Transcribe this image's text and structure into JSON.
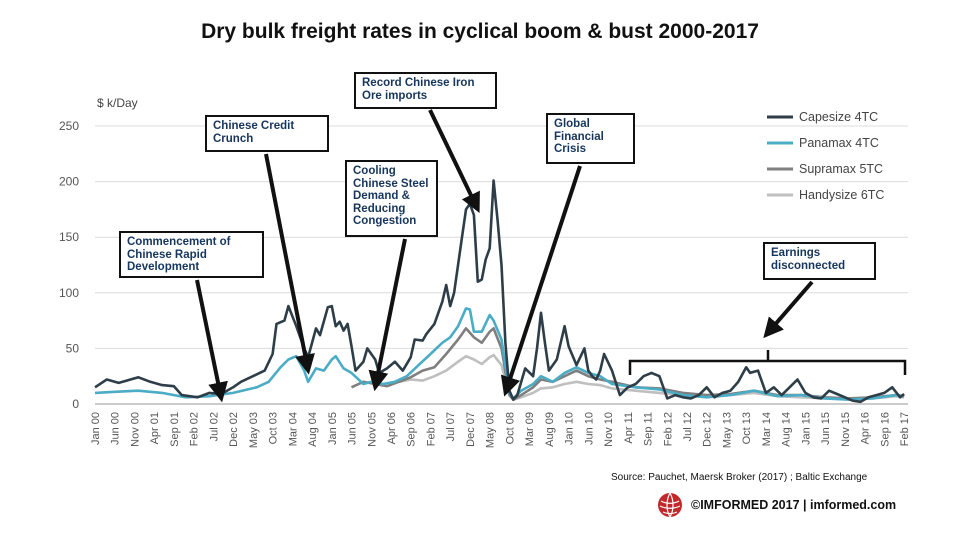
{
  "chart_data": {
    "type": "line",
    "title": "Dry bulk freight rates in cyclical boom & bust 2000-2017",
    "ylabel": "$ k/Day",
    "ylim": [
      0,
      250
    ],
    "yticks": [
      0,
      50,
      100,
      150,
      200,
      250
    ],
    "xlim": [
      "2000-01",
      "2017-03"
    ],
    "xticks": [
      "Jan 00",
      "Jun 00",
      "Nov 00",
      "Apr 01",
      "Sep 01",
      "Feb 02",
      "Jul 02",
      "Dec 02",
      "May 03",
      "Oct 03",
      "Mar 04",
      "Aug 04",
      "Jan 05",
      "Jun 05",
      "Nov 05",
      "Apr 06",
      "Sep 06",
      "Feb 07",
      "Jul 07",
      "Dec 07",
      "May 08",
      "Oct 08",
      "Mar 09",
      "Aug 09",
      "Jan 10",
      "Jun 10",
      "Nov 10",
      "Apr 11",
      "Sep 11",
      "Feb 12",
      "Jul 12",
      "Dec 12",
      "May 13",
      "Oct 13",
      "Mar 14",
      "Aug 14",
      "Jan 15",
      "Jun 15",
      "Nov 15",
      "Apr 16",
      "Sep 16",
      "Feb 17"
    ],
    "grid": "horizontal",
    "legend_position": "top-right",
    "series": [
      {
        "name": "Capesize 4TC",
        "color": "#2e3e48",
        "points": [
          [
            "2000-01",
            15
          ],
          [
            "2000-04",
            22
          ],
          [
            "2000-07",
            19
          ],
          [
            "2000-10",
            22
          ],
          [
            "2000-12",
            24
          ],
          [
            "2001-03",
            20
          ],
          [
            "2001-06",
            17
          ],
          [
            "2001-09",
            16
          ],
          [
            "2001-11",
            8
          ],
          [
            "2002-03",
            6
          ],
          [
            "2002-06",
            10
          ],
          [
            "2002-09",
            9
          ],
          [
            "2002-12",
            15
          ],
          [
            "2003-02",
            20
          ],
          [
            "2003-05",
            25
          ],
          [
            "2003-08",
            30
          ],
          [
            "2003-10",
            45
          ],
          [
            "2003-11",
            72
          ],
          [
            "2004-01",
            75
          ],
          [
            "2004-02",
            88
          ],
          [
            "2004-04",
            70
          ],
          [
            "2004-06",
            50
          ],
          [
            "2004-07",
            42
          ],
          [
            "2004-09",
            68
          ],
          [
            "2004-10",
            62
          ],
          [
            "2004-12",
            87
          ],
          [
            "2005-01",
            88
          ],
          [
            "2005-02",
            70
          ],
          [
            "2005-03",
            74
          ],
          [
            "2005-04",
            66
          ],
          [
            "2005-05",
            72
          ],
          [
            "2005-06",
            52
          ],
          [
            "2005-07",
            30
          ],
          [
            "2005-09",
            38
          ],
          [
            "2005-10",
            50
          ],
          [
            "2005-12",
            40
          ],
          [
            "2006-01",
            28
          ],
          [
            "2006-03",
            32
          ],
          [
            "2006-05",
            38
          ],
          [
            "2006-07",
            30
          ],
          [
            "2006-09",
            42
          ],
          [
            "2006-10",
            58
          ],
          [
            "2006-12",
            57
          ],
          [
            "2007-01",
            63
          ],
          [
            "2007-03",
            72
          ],
          [
            "2007-05",
            92
          ],
          [
            "2007-06",
            107
          ],
          [
            "2007-07",
            88
          ],
          [
            "2007-08",
            100
          ],
          [
            "2007-10",
            150
          ],
          [
            "2007-11",
            175
          ],
          [
            "2007-12",
            180
          ],
          [
            "2008-01",
            170
          ],
          [
            "2008-02",
            110
          ],
          [
            "2008-03",
            112
          ],
          [
            "2008-04",
            130
          ],
          [
            "2008-05",
            140
          ],
          [
            "2008-06",
            201
          ],
          [
            "2008-07",
            165
          ],
          [
            "2008-08",
            125
          ],
          [
            "2008-09",
            55
          ],
          [
            "2008-10",
            12
          ],
          [
            "2008-11",
            4
          ],
          [
            "2008-12",
            8
          ],
          [
            "2009-02",
            32
          ],
          [
            "2009-04",
            25
          ],
          [
            "2009-05",
            50
          ],
          [
            "2009-06",
            82
          ],
          [
            "2009-07",
            55
          ],
          [
            "2009-08",
            30
          ],
          [
            "2009-10",
            40
          ],
          [
            "2009-12",
            70
          ],
          [
            "2010-01",
            52
          ],
          [
            "2010-03",
            35
          ],
          [
            "2010-05",
            50
          ],
          [
            "2010-06",
            30
          ],
          [
            "2010-07",
            25
          ],
          [
            "2010-08",
            22
          ],
          [
            "2010-09",
            30
          ],
          [
            "2010-10",
            45
          ],
          [
            "2010-12",
            30
          ],
          [
            "2011-02",
            8
          ],
          [
            "2011-04",
            15
          ],
          [
            "2011-06",
            18
          ],
          [
            "2011-08",
            25
          ],
          [
            "2011-10",
            28
          ],
          [
            "2011-12",
            25
          ],
          [
            "2012-02",
            5
          ],
          [
            "2012-04",
            8
          ],
          [
            "2012-06",
            6
          ],
          [
            "2012-08",
            5
          ],
          [
            "2012-10",
            8
          ],
          [
            "2012-12",
            15
          ],
          [
            "2013-02",
            6
          ],
          [
            "2013-04",
            10
          ],
          [
            "2013-06",
            12
          ],
          [
            "2013-08",
            20
          ],
          [
            "2013-10",
            33
          ],
          [
            "2013-11",
            28
          ],
          [
            "2014-01",
            30
          ],
          [
            "2014-03",
            10
          ],
          [
            "2014-05",
            15
          ],
          [
            "2014-07",
            8
          ],
          [
            "2014-09",
            15
          ],
          [
            "2014-11",
            22
          ],
          [
            "2015-01",
            10
          ],
          [
            "2015-03",
            6
          ],
          [
            "2015-05",
            5
          ],
          [
            "2015-07",
            12
          ],
          [
            "2015-09",
            9
          ],
          [
            "2015-11",
            6
          ],
          [
            "2016-01",
            3
          ],
          [
            "2016-03",
            2
          ],
          [
            "2016-05",
            6
          ],
          [
            "2016-07",
            8
          ],
          [
            "2016-09",
            10
          ],
          [
            "2016-11",
            15
          ],
          [
            "2017-01",
            6
          ],
          [
            "2017-02",
            9
          ]
        ]
      },
      {
        "name": "Panamax 4TC",
        "color": "#4bacc6",
        "points": [
          [
            "2000-01",
            10
          ],
          [
            "2000-06",
            11
          ],
          [
            "2000-12",
            12
          ],
          [
            "2001-06",
            10
          ],
          [
            "2001-12",
            6
          ],
          [
            "2002-06",
            7
          ],
          [
            "2002-12",
            10
          ],
          [
            "2003-06",
            15
          ],
          [
            "2003-09",
            20
          ],
          [
            "2003-12",
            33
          ],
          [
            "2004-02",
            40
          ],
          [
            "2004-04",
            43
          ],
          [
            "2004-06",
            30
          ],
          [
            "2004-07",
            20
          ],
          [
            "2004-09",
            32
          ],
          [
            "2004-11",
            30
          ],
          [
            "2005-01",
            40
          ],
          [
            "2005-02",
            43
          ],
          [
            "2005-04",
            32
          ],
          [
            "2005-06",
            28
          ],
          [
            "2005-09",
            18
          ],
          [
            "2005-11",
            20
          ],
          [
            "2006-02",
            18
          ],
          [
            "2006-05",
            20
          ],
          [
            "2006-08",
            25
          ],
          [
            "2006-11",
            35
          ],
          [
            "2007-02",
            45
          ],
          [
            "2007-05",
            55
          ],
          [
            "2007-07",
            60
          ],
          [
            "2007-09",
            70
          ],
          [
            "2007-11",
            86
          ],
          [
            "2007-12",
            85
          ],
          [
            "2008-01",
            65
          ],
          [
            "2008-03",
            65
          ],
          [
            "2008-05",
            80
          ],
          [
            "2008-06",
            75
          ],
          [
            "2008-08",
            58
          ],
          [
            "2008-10",
            10
          ],
          [
            "2008-11",
            5
          ],
          [
            "2009-01",
            12
          ],
          [
            "2009-04",
            18
          ],
          [
            "2009-06",
            25
          ],
          [
            "2009-09",
            20
          ],
          [
            "2009-12",
            28
          ],
          [
            "2010-03",
            33
          ],
          [
            "2010-06",
            28
          ],
          [
            "2010-09",
            25
          ],
          [
            "2010-12",
            18
          ],
          [
            "2011-06",
            15
          ],
          [
            "2011-12",
            13
          ],
          [
            "2012-06",
            8
          ],
          [
            "2012-12",
            6
          ],
          [
            "2013-06",
            8
          ],
          [
            "2013-12",
            12
          ],
          [
            "2014-06",
            7
          ],
          [
            "2014-12",
            8
          ],
          [
            "2015-06",
            5
          ],
          [
            "2015-12",
            4
          ],
          [
            "2016-06",
            5
          ],
          [
            "2016-12",
            8
          ],
          [
            "2017-02",
            7
          ]
        ]
      },
      {
        "name": "Supramax 5TC",
        "color": "#7f7f7f",
        "points": [
          [
            "2005-06",
            15
          ],
          [
            "2005-09",
            20
          ],
          [
            "2005-12",
            18
          ],
          [
            "2006-03",
            16
          ],
          [
            "2006-06",
            20
          ],
          [
            "2006-09",
            24
          ],
          [
            "2006-12",
            30
          ],
          [
            "2007-03",
            33
          ],
          [
            "2007-06",
            45
          ],
          [
            "2007-09",
            58
          ],
          [
            "2007-11",
            68
          ],
          [
            "2008-01",
            60
          ],
          [
            "2008-03",
            55
          ],
          [
            "2008-05",
            65
          ],
          [
            "2008-06",
            68
          ],
          [
            "2008-08",
            50
          ],
          [
            "2008-10",
            8
          ],
          [
            "2008-11",
            4
          ],
          [
            "2009-01",
            8
          ],
          [
            "2009-04",
            15
          ],
          [
            "2009-06",
            22
          ],
          [
            "2009-09",
            20
          ],
          [
            "2009-12",
            25
          ],
          [
            "2010-03",
            30
          ],
          [
            "2010-06",
            25
          ],
          [
            "2010-09",
            22
          ],
          [
            "2010-12",
            20
          ],
          [
            "2011-06",
            15
          ],
          [
            "2011-12",
            14
          ],
          [
            "2012-06",
            10
          ],
          [
            "2012-12",
            8
          ],
          [
            "2013-06",
            9
          ],
          [
            "2013-12",
            12
          ],
          [
            "2014-06",
            8
          ],
          [
            "2014-12",
            8
          ],
          [
            "2015-06",
            6
          ],
          [
            "2015-12",
            5
          ],
          [
            "2016-06",
            6
          ],
          [
            "2016-12",
            8
          ],
          [
            "2017-02",
            7
          ]
        ]
      },
      {
        "name": "Handysize 6TC",
        "color": "#bfbfbf",
        "points": [
          [
            "2006-06",
            20
          ],
          [
            "2006-09",
            22
          ],
          [
            "2006-12",
            21
          ],
          [
            "2007-03",
            25
          ],
          [
            "2007-06",
            30
          ],
          [
            "2007-09",
            38
          ],
          [
            "2007-11",
            43
          ],
          [
            "2008-01",
            40
          ],
          [
            "2008-03",
            36
          ],
          [
            "2008-05",
            42
          ],
          [
            "2008-06",
            44
          ],
          [
            "2008-08",
            35
          ],
          [
            "2008-10",
            8
          ],
          [
            "2008-11",
            4
          ],
          [
            "2009-01",
            6
          ],
          [
            "2009-04",
            10
          ],
          [
            "2009-06",
            14
          ],
          [
            "2009-09",
            15
          ],
          [
            "2009-12",
            18
          ],
          [
            "2010-03",
            20
          ],
          [
            "2010-06",
            18
          ],
          [
            "2010-09",
            17
          ],
          [
            "2010-12",
            14
          ],
          [
            "2011-06",
            12
          ],
          [
            "2011-12",
            10
          ],
          [
            "2012-06",
            8
          ],
          [
            "2012-12",
            7
          ],
          [
            "2013-06",
            8
          ],
          [
            "2013-12",
            10
          ],
          [
            "2014-06",
            7
          ],
          [
            "2014-12",
            6
          ],
          [
            "2015-06",
            5
          ],
          [
            "2015-12",
            4
          ],
          [
            "2016-06",
            5
          ],
          [
            "2016-12",
            7
          ],
          [
            "2017-02",
            6
          ]
        ]
      }
    ],
    "annotations": [
      {
        "text": "Commencement of Chinese Rapid Development",
        "target": [
          "2002-09",
          5
        ]
      },
      {
        "text": "Chinese Credit Crunch",
        "target": [
          "2004-07",
          30
        ]
      },
      {
        "text": "Cooling Chinese Steel Demand & Reducing Congestion",
        "target": [
          "2005-12",
          15
        ]
      },
      {
        "text": "Record Chinese Iron Ore imports",
        "target": [
          "2008-02",
          175
        ]
      },
      {
        "text": "Global Financial Crisis",
        "target": [
          "2008-09",
          10
        ]
      },
      {
        "text": "Earnings disconnected",
        "target": [
          "2014-03",
          62
        ]
      }
    ]
  },
  "source": "Source: Pauchet, Maersk Broker (2017) ; Baltic Exchange",
  "footer": {
    "brand": "©IMFORMED  2017  | imformed.com",
    "logo_icon": "globe-logo-icon",
    "logo_color": "#c0282a"
  }
}
